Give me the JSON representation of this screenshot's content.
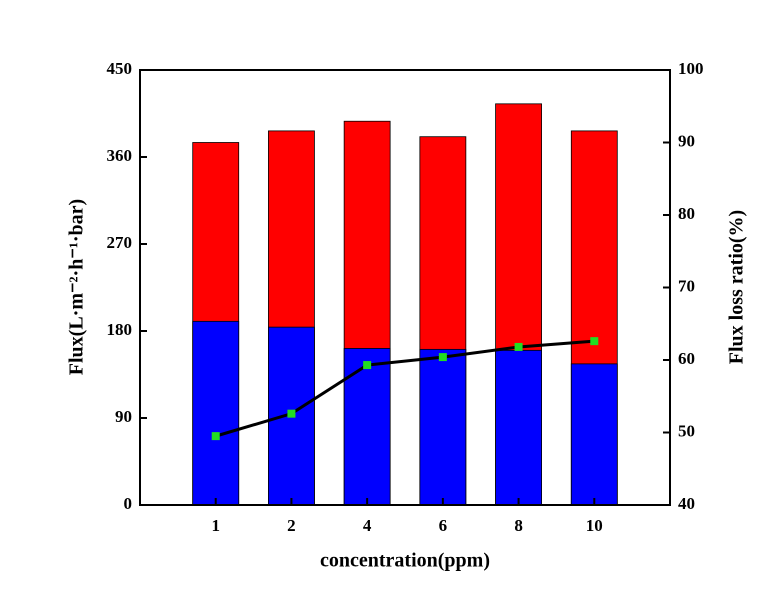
{
  "chart_data": {
    "type": "bar",
    "x_label": "concentration(ppm)",
    "y_label": "Flux(L·m⁻²·h⁻¹·bar)",
    "y2_label": "Flux loss ratio(%)",
    "categories": [
      "1",
      "2",
      "4",
      "6",
      "8",
      "10"
    ],
    "series": [
      {
        "type": "bar",
        "color": "#ff0000",
        "values": [
          375,
          387,
          397,
          381,
          415,
          387
        ]
      },
      {
        "type": "bar",
        "color": "#0000ff",
        "values": [
          190,
          184,
          162,
          161,
          160,
          146
        ]
      },
      {
        "type": "line",
        "axis": "y2",
        "color": "#000000",
        "marker_color": "#22dd22",
        "values": [
          49.5,
          52.6,
          59.3,
          60.4,
          61.8,
          62.6
        ]
      }
    ],
    "ylim": [
      0,
      450
    ],
    "yticks": [
      0,
      90,
      180,
      270,
      360,
      450
    ],
    "y2lim": [
      40,
      100
    ],
    "y2ticks": [
      40,
      50,
      60,
      70,
      80,
      90,
      100
    ]
  }
}
